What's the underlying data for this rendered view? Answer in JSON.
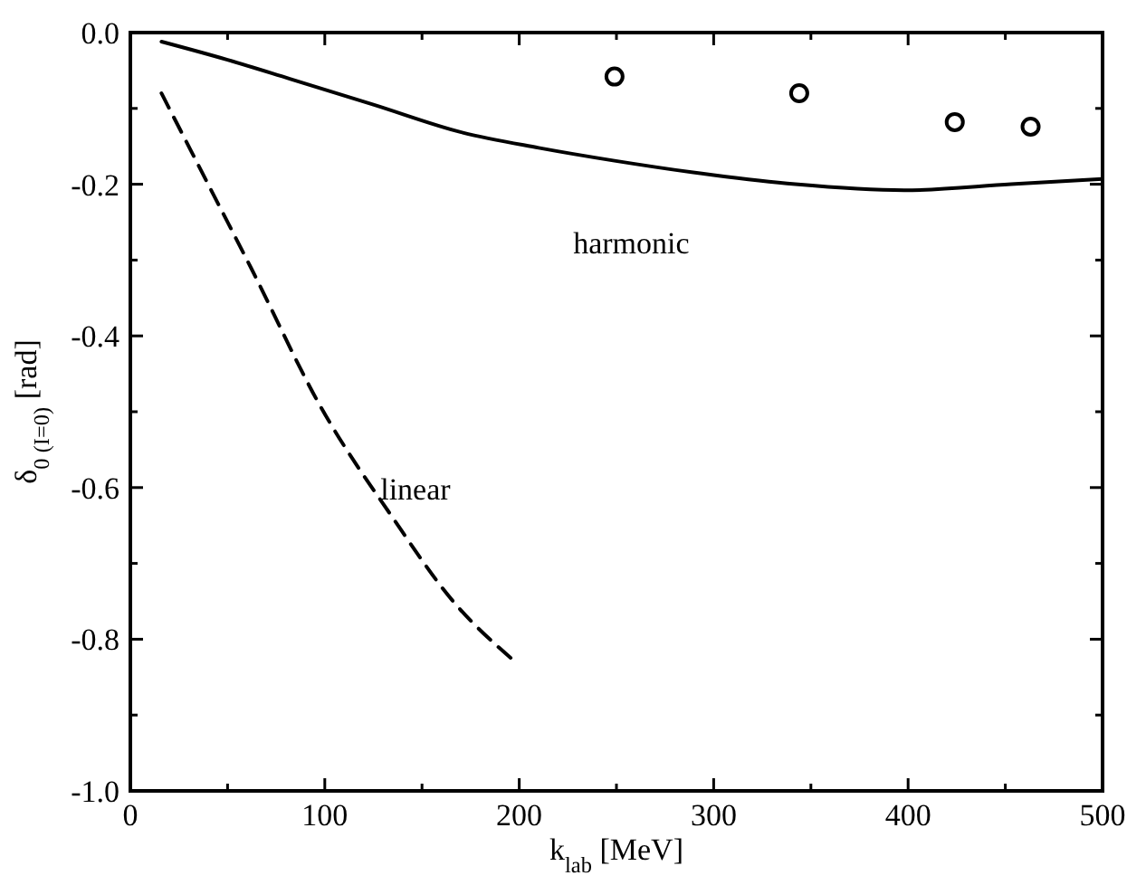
{
  "chart_data": {
    "type": "line",
    "xlabel": "k$_{lab}$ [MeV]",
    "ylabel": "δ$_{0 (I=0)}$ [rad]",
    "xlim": [
      0,
      500
    ],
    "ylim": [
      -1.0,
      0.0
    ],
    "xticks": [
      {
        "value": 0,
        "label": "0"
      },
      {
        "value": 50,
        "label": null
      },
      {
        "value": 100,
        "label": "100"
      },
      {
        "value": 150,
        "label": null
      },
      {
        "value": 200,
        "label": "200"
      },
      {
        "value": 250,
        "label": null
      },
      {
        "value": 300,
        "label": "300"
      },
      {
        "value": 350,
        "label": null
      },
      {
        "value": 400,
        "label": "400"
      },
      {
        "value": 450,
        "label": null
      },
      {
        "value": 500,
        "label": "500"
      }
    ],
    "yticks": [
      {
        "value": -1.0,
        "label": "-1.0"
      },
      {
        "value": -0.9,
        "label": null
      },
      {
        "value": -0.8,
        "label": "-0.8"
      },
      {
        "value": -0.7,
        "label": null
      },
      {
        "value": -0.6,
        "label": "-0.6"
      },
      {
        "value": -0.5,
        "label": null
      },
      {
        "value": -0.4,
        "label": "-0.4"
      },
      {
        "value": -0.3,
        "label": null
      },
      {
        "value": -0.2,
        "label": "-0.2"
      },
      {
        "value": -0.1,
        "label": null
      },
      {
        "value": 0.0,
        "label": "0.0"
      }
    ],
    "grid": false,
    "legend": false,
    "series": [
      {
        "name": "harmonic",
        "color": "#000000",
        "line_style": "solid",
        "marker": "none",
        "x": [
          16,
          50,
          82,
          125,
          171,
          210,
          249,
          300,
          342,
          398,
          453,
          500
        ],
        "values": [
          -0.012,
          -0.036,
          -0.061,
          -0.095,
          -0.132,
          -0.152,
          -0.169,
          -0.188,
          -0.2,
          -0.208,
          -0.2,
          -0.193
        ]
      },
      {
        "name": "linear",
        "color": "#000000",
        "line_style": "dashed",
        "marker": "none",
        "x": [
          16,
          40,
          62,
          98,
          135,
          166,
          198
        ],
        "values": [
          -0.08,
          -0.2,
          -0.31,
          -0.494,
          -0.64,
          -0.75,
          -0.83
        ]
      },
      {
        "type": "scatter",
        "color": "#000000",
        "marker": "circle",
        "x": [
          249,
          344,
          424,
          463
        ],
        "values": [
          -0.058,
          -0.08,
          -0.118,
          -0.124
        ]
      }
    ]
  }
}
